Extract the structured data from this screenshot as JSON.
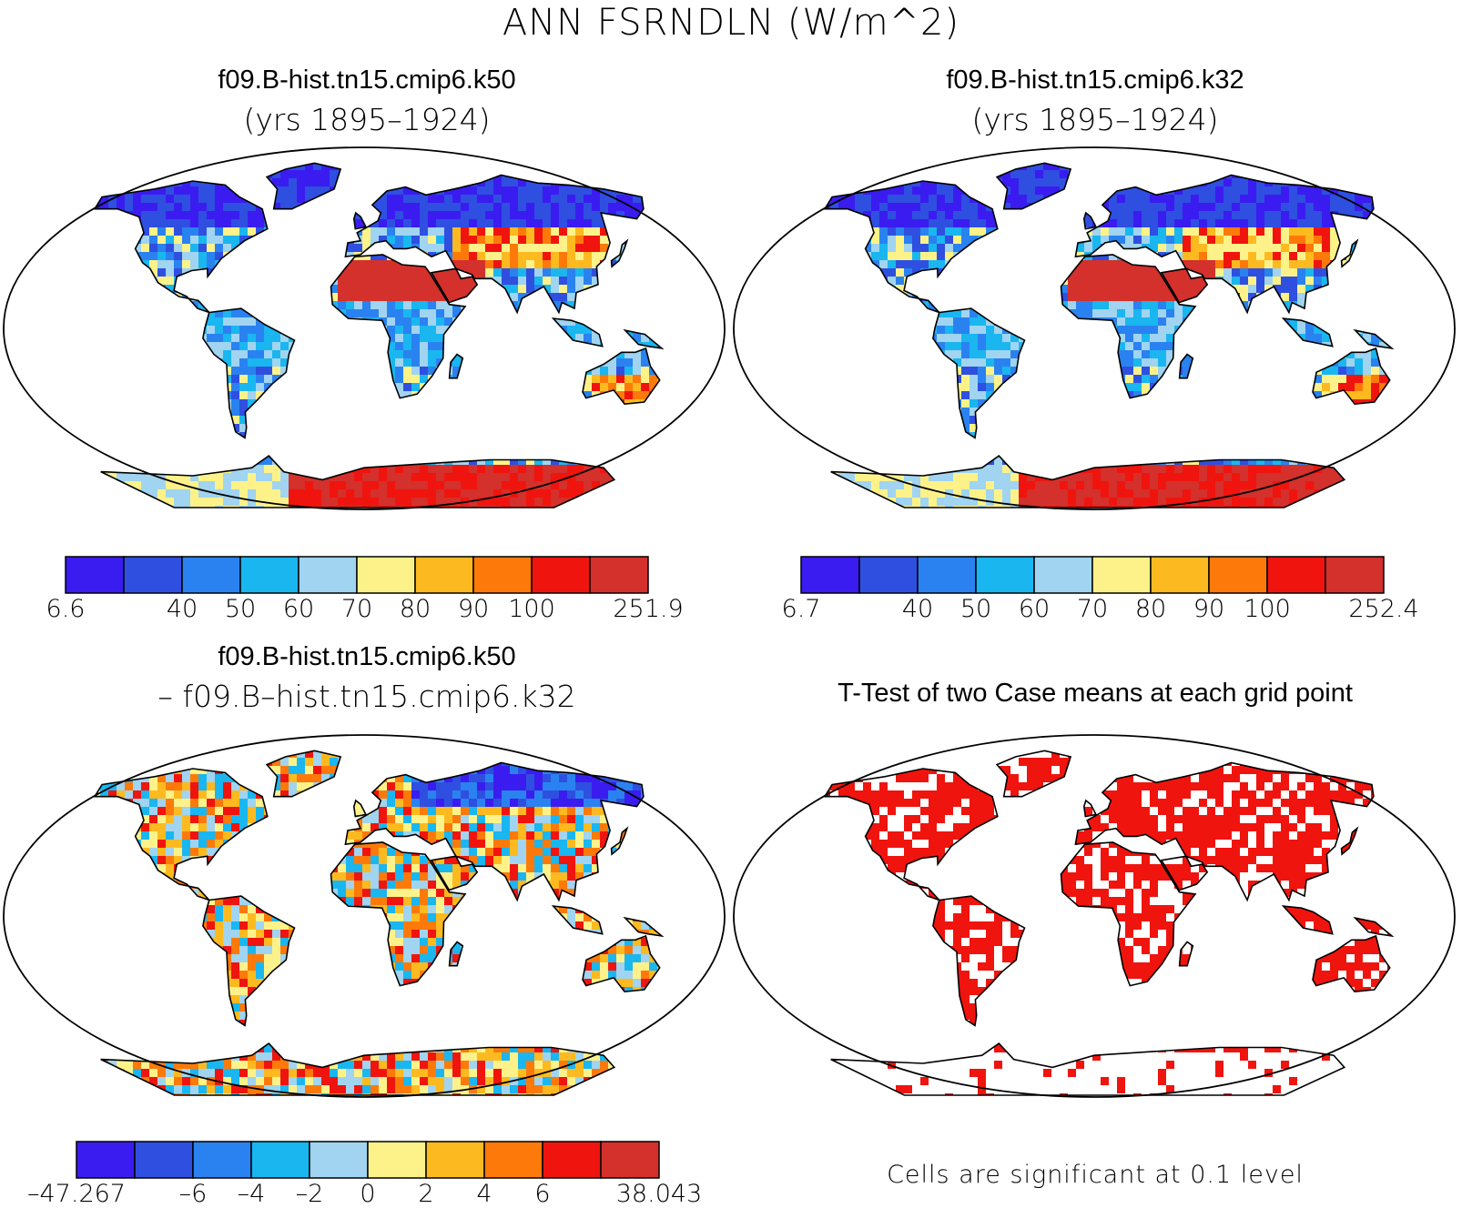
{
  "title": "ANN FSRNDLN (W/m^2)",
  "panels": [
    {
      "id": "k50",
      "case": "f09.B-hist.tn15.cmip6.k50",
      "subtitle": "(yrs 1895–1924)"
    },
    {
      "id": "k32",
      "case": "f09.B-hist.tn15.cmip6.k32",
      "subtitle": "(yrs 1895–1924)"
    },
    {
      "id": "diff",
      "case": "f09.B-hist.tn15.cmip6.k50",
      "subtitle": "– f09.B–hist.tn15.cmip6.k32"
    },
    {
      "id": "ttest",
      "case": "T-Test of two Case means at each grid point",
      "subtitle": ""
    }
  ],
  "colorbars": {
    "k50": {
      "colors": [
        "#3a1cf0",
        "#2f4fe0",
        "#2a82f0",
        "#1ab6f0",
        "#a0d4f0",
        "#fdf28a",
        "#fdba20",
        "#fd7a0a",
        "#f0140e",
        "#d4302c"
      ],
      "labels": [
        "6.6",
        "",
        "40",
        "50",
        "60",
        "70",
        "80",
        "90",
        "100",
        "",
        "251.9"
      ]
    },
    "k32": {
      "colors": [
        "#3a1cf0",
        "#2f4fe0",
        "#2a82f0",
        "#1ab6f0",
        "#a0d4f0",
        "#fdf28a",
        "#fdba20",
        "#fd7a0a",
        "#f0140e",
        "#d4302c"
      ],
      "labels": [
        "6.7",
        "",
        "40",
        "50",
        "60",
        "70",
        "80",
        "90",
        "100",
        "",
        "252.4"
      ]
    },
    "diff": {
      "colors": [
        "#3a1cf0",
        "#2f4fe0",
        "#2a82f0",
        "#1ab6f0",
        "#a0d4f0",
        "#fdf28a",
        "#fdba20",
        "#fd7a0a",
        "#f0140e",
        "#d4302c"
      ],
      "labels": [
        "–47.267",
        "",
        "–6",
        "–4",
        "–2",
        "0",
        "2",
        "4",
        "6",
        "",
        "38.043"
      ]
    }
  },
  "significance_note": "Cells are significant at 0.1 level",
  "significance_color": "#f0140e"
}
